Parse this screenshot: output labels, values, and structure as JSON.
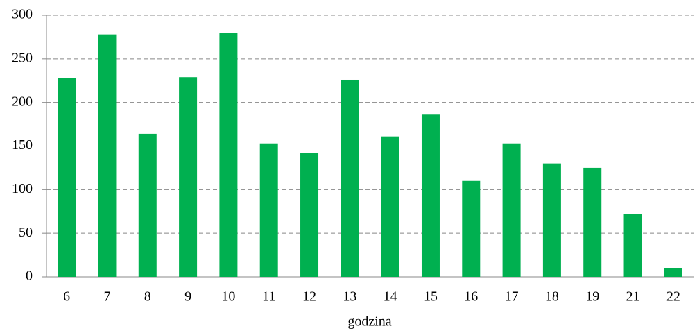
{
  "chart_data": {
    "type": "bar",
    "x_label": "godzina",
    "categories": [
      "6",
      "7",
      "8",
      "9",
      "10",
      "11",
      "12",
      "13",
      "14",
      "15",
      "16",
      "17",
      "18",
      "19",
      "21",
      "22"
    ],
    "values": [
      228,
      278,
      164,
      229,
      280,
      153,
      142,
      226,
      161,
      186,
      110,
      153,
      130,
      125,
      72,
      10
    ],
    "color": "#00b050",
    "ylim": [
      0,
      300
    ],
    "yticks": [
      0,
      50,
      100,
      150,
      200,
      250,
      300
    ],
    "grid": true
  }
}
